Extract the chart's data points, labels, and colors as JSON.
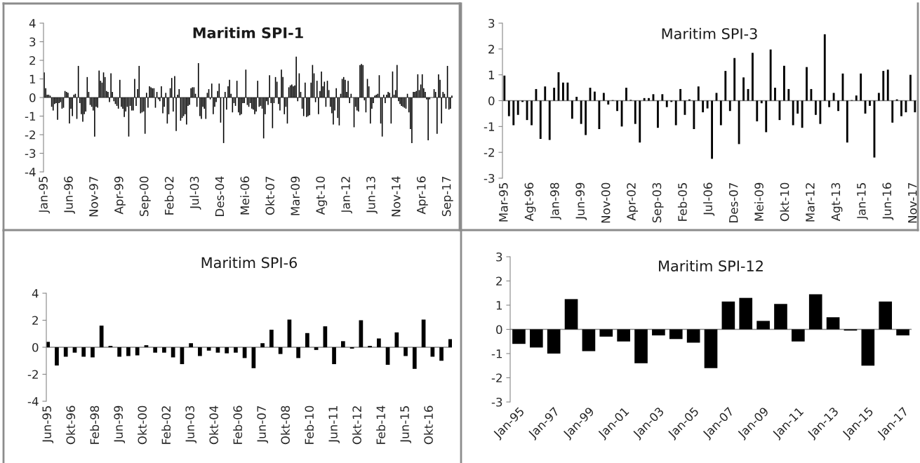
{
  "chart_data": [
    {
      "type": "bar",
      "title": "Maritim SPI-1",
      "color": "#000000",
      "ylim": [
        -4,
        4
      ],
      "yticks": [
        -4,
        -3,
        -2,
        -1,
        0,
        1,
        2,
        3,
        4
      ],
      "categories": [
        "Jan-95",
        null,
        null,
        null,
        null,
        null,
        null,
        null,
        null,
        null,
        null,
        null,
        null,
        null,
        null,
        null,
        null,
        "Jun-96",
        null,
        null,
        null,
        null,
        null,
        null,
        null,
        null,
        null,
        null,
        null,
        null,
        null,
        null,
        null,
        null,
        "Nov-97",
        null,
        null,
        null,
        null,
        null,
        null,
        null,
        null,
        null,
        null,
        null,
        null,
        null,
        null,
        null,
        null,
        "Apr-99",
        null,
        null,
        null,
        null,
        null,
        null,
        null,
        null,
        null,
        null,
        null,
        null,
        null,
        null,
        null,
        null,
        "Sep-00",
        null,
        null,
        null,
        null,
        null,
        null,
        null,
        null,
        null,
        null,
        null,
        null,
        null,
        null,
        null,
        null,
        "Feb-02",
        null,
        null,
        null,
        null,
        null,
        null,
        null,
        null,
        null,
        null,
        null,
        null,
        null,
        null,
        null,
        null,
        "Jul-03",
        null,
        null,
        null,
        null,
        null,
        null,
        null,
        null,
        null,
        null,
        null,
        null,
        null,
        null,
        null,
        null,
        "Des-04",
        null,
        null,
        null,
        null,
        null,
        null,
        null,
        null,
        null,
        null,
        null,
        null,
        null,
        null,
        null,
        null,
        "Mei-06",
        null,
        null,
        null,
        null,
        null,
        null,
        null,
        null,
        null,
        null,
        null,
        null,
        null,
        null,
        null,
        null,
        "Okt-07",
        null,
        null,
        null,
        null,
        null,
        null,
        null,
        null,
        null,
        null,
        null,
        null,
        null,
        null,
        null,
        null,
        "Mar-09",
        null,
        null,
        null,
        null,
        null,
        null,
        null,
        null,
        null,
        null,
        null,
        null,
        null,
        null,
        null,
        null,
        "Agt-10",
        null,
        null,
        null,
        null,
        null,
        null,
        null,
        null,
        null,
        null,
        null,
        null,
        null,
        null,
        null,
        null,
        "Jan-12",
        null,
        null,
        null,
        null,
        null,
        null,
        null,
        null,
        null,
        null,
        null,
        null,
        null,
        null,
        null,
        null,
        "Jun-13",
        null,
        null,
        null,
        null,
        null,
        null,
        null,
        null,
        null,
        null,
        null,
        null,
        null,
        null,
        null,
        null,
        "Nov-14",
        null,
        null,
        null,
        null,
        null,
        null,
        null,
        null,
        null,
        null,
        null,
        null,
        null,
        null,
        null,
        null,
        "Apr-16",
        null,
        null,
        null,
        null,
        null,
        null,
        null,
        null,
        null,
        null,
        null,
        null,
        null,
        null,
        null,
        null,
        "Sep-17",
        null,
        null,
        null
      ],
      "values": [
        1.35,
        0.5,
        0.15,
        0.15,
        0.1,
        -0.5,
        -0.7,
        -0.35,
        -0.3,
        -1.2,
        -0.3,
        -0.25,
        -0.6,
        -0.55,
        0.35,
        0.3,
        0.25,
        -1.4,
        -0.6,
        -1.0,
        0.15,
        0.2,
        -1.15,
        1.7,
        -0.3,
        -0.9,
        -1.3,
        -0.9,
        -0.75,
        1.1,
        0.3,
        -0.4,
        -0.5,
        -0.7,
        -2.1,
        -0.5,
        -0.55,
        1.45,
        0.9,
        0.8,
        1.35,
        1.1,
        0.35,
        0.3,
        -0.25,
        1.3,
        0.3,
        -0.2,
        -0.35,
        -0.45,
        -0.6,
        0.95,
        -0.5,
        -0.6,
        -1.05,
        -0.75,
        -0.5,
        -2.1,
        -0.45,
        -0.7,
        -0.7,
        1.0,
        -0.45,
        0.45,
        1.7,
        -0.85,
        -0.8,
        -0.75,
        -1.95,
        0.25,
        -0.55,
        0.6,
        0.55,
        0.5,
        0.5,
        -0.55,
        0.3,
        -0.1,
        -0.2,
        0.6,
        -0.85,
        -0.5,
        0.25,
        -1.4,
        -0.9,
        0.5,
        1.05,
        -0.75,
        1.15,
        -1.8,
        0.15,
        0.45,
        -1.25,
        -1.1,
        -1.0,
        -0.9,
        -1.45,
        -0.45,
        -0.4,
        0.5,
        0.55,
        0.55,
        0.2,
        -0.5,
        1.85,
        -1.0,
        -1.15,
        -0.5,
        -0.6,
        -1.15,
        0.25,
        0.45,
        -0.1,
        0.75,
        -0.9,
        -0.5,
        -0.25,
        0.35,
        0.75,
        -1.35,
        null,
        -2.45,
        0.3,
        -0.65,
        0.6,
        0.95,
        0.2,
        -0.8,
        -0.3,
        -0.45,
        0.9,
        -0.8,
        -0.95,
        -0.9,
        -0.3,
        -0.3,
        1.5,
        -0.4,
        -0.5,
        -0.3,
        -0.6,
        -0.65,
        -0.9,
        -0.75,
        0.9,
        -0.5,
        -0.45,
        -0.6,
        -2.2,
        -0.9,
        -0.2,
        -0.4,
        1.2,
        -0.3,
        -1.65,
        -0.3,
        1.1,
        0.85,
        -0.35,
        -0.7,
        1.5,
        1.1,
        -0.9,
        -0.5,
        -1.4,
        0.55,
        0.65,
        0.7,
        0.6,
        0.65,
        2.2,
        -0.2,
        1.3,
        0.3,
        -0.6,
        -1.0,
        0.8,
        -1.05,
        -1.0,
        -0.95,
        0.8,
        1.75,
        1.3,
        -0.25,
        0.9,
        -0.9,
        0.35,
        1.4,
        0.6,
        0.85,
        -0.5,
        0.9,
        0.4,
        -0.5,
        -0.85,
        -1.45,
        -0.7,
        0.5,
        -1.1,
        -1.5,
        0.2,
        1.0,
        1.1,
        0.95,
        0.3,
        0.9,
        -0.3,
        0.2,
        null,
        -1.6,
        -0.5,
        -0.7,
        -0.75,
        1.75,
        1.8,
        1.75,
        -0.15,
        -0.8,
        1.0,
        0.6,
        -1.4,
        -0.6,
        -0.3,
        0.1,
        0.15,
        0.2,
        1.2,
        -1.4,
        -2.1,
        0.15,
        -0.3,
        0.15,
        0.3,
        0.25,
        -1.4,
        1.4,
        0.15,
        0.4,
        1.75,
        -0.2,
        -0.35,
        -0.45,
        -0.5,
        -0.55,
        -0.6,
        0.2,
        -0.8,
        -1.7,
        -2.45,
        0.3,
        0.3,
        0.35,
        1.25,
        0.4,
        0.7,
        1.25,
        0.5,
        0.3,
        -0.1,
        -2.3,
        -0.1,
        null,
        0.0,
        0.45,
        0.3,
        -1.95,
        1.25,
        0.95,
        -1.4,
        0.3,
        0.2,
        -0.6,
        1.7,
        -0.65,
        -0.6,
        0.1
      ]
    },
    {
      "type": "bar",
      "title": "Maritim SPI-3",
      "color": "#000000",
      "ylim": [
        -3,
        3
      ],
      "yticks": [
        -3,
        -2,
        -1,
        0,
        1,
        2,
        3
      ],
      "xlim": [
        "1995-01-20",
        "2018-01-01"
      ],
      "xticks": [
        {
          "value": "1995-03",
          "label": "Mar-95"
        },
        {
          "value": "1996-08",
          "label": "Agt-96"
        },
        {
          "value": "1998-01",
          "label": "Jan-98"
        },
        {
          "value": "1999-06",
          "label": "Jun-99"
        },
        {
          "value": "2000-11",
          "label": "Nov-00"
        },
        {
          "value": "2002-04",
          "label": "Apr-02"
        },
        {
          "value": "2003-09",
          "label": "Sep-03"
        },
        {
          "value": "2005-02",
          "label": "Feb-05"
        },
        {
          "value": "2006-07",
          "label": "Jul-06"
        },
        {
          "value": "2007-12",
          "label": "Des-07"
        },
        {
          "value": "2009-05",
          "label": "Mei-09"
        },
        {
          "value": "2010-10",
          "label": "Okt-10"
        },
        {
          "value": "2012-03",
          "label": "Mar-12"
        },
        {
          "value": "2013-08",
          "label": "Agt-13"
        },
        {
          "value": "2015-01",
          "label": "Jan-15"
        },
        {
          "value": "2016-06",
          "label": "Jun-16"
        },
        {
          "value": "2017-11",
          "label": "Nov-17"
        }
      ],
      "x": [
        "1995-03",
        "1995-06",
        "1995-09",
        "1995-12",
        "1996-03",
        "1996-06",
        "1996-09",
        "1996-12",
        "1997-03",
        "1997-06",
        "1997-09",
        "1997-12",
        "1998-03",
        "1998-06",
        "1998-09",
        "1998-12",
        "1999-03",
        "1999-06",
        "1999-09",
        "1999-12",
        "2000-03",
        "2000-06",
        "2000-09",
        "2000-12",
        "2001-03",
        "2001-06",
        "2001-09",
        "2001-12",
        "2002-03",
        "2002-06",
        "2002-09",
        "2002-12",
        "2003-03",
        "2003-06",
        "2003-09",
        "2003-12",
        "2004-03",
        "2004-06",
        "2004-09",
        "2004-12",
        "2005-03",
        "2005-06",
        "2005-09",
        "2005-12",
        "2006-03",
        "2006-06",
        "2006-09",
        "2006-12",
        "2007-03",
        "2007-06",
        "2007-09",
        "2007-12",
        "2008-03",
        "2008-06",
        "2008-09",
        "2008-12",
        "2009-03",
        "2009-06",
        "2009-09",
        "2009-12",
        "2010-03",
        "2010-06",
        "2010-09",
        "2010-12",
        "2011-03",
        "2011-06",
        "2011-09",
        "2011-12",
        "2012-03",
        "2012-06",
        "2012-09",
        "2012-12",
        "2013-03",
        "2013-06",
        "2013-09",
        "2013-12",
        "2014-03",
        "2014-06",
        "2014-09",
        "2014-12",
        "2015-03",
        "2015-06",
        "2015-09",
        "2015-12",
        "2016-03",
        "2016-06",
        "2016-09",
        "2016-12",
        "2017-03",
        "2017-06",
        "2017-09",
        "2017-12"
      ],
      "values": [
        0.97,
        -0.6,
        -0.95,
        -0.55,
        -0.05,
        -0.75,
        -0.95,
        0.45,
        -1.48,
        0.55,
        -1.52,
        0.5,
        1.1,
        0.7,
        0.7,
        -0.7,
        0.15,
        -0.9,
        -1.33,
        0.5,
        0.35,
        -1.1,
        0.3,
        -0.15,
        0.02,
        -0.4,
        -1.0,
        0.5,
        0.03,
        -0.9,
        -1.62,
        0.1,
        0.1,
        0.25,
        -1.05,
        0.25,
        -0.25,
        -0.05,
        -0.95,
        0.45,
        -0.55,
        0.05,
        -1.1,
        0.55,
        -0.45,
        -0.3,
        -2.25,
        0.3,
        -0.95,
        1.15,
        -0.4,
        1.65,
        -1.68,
        0.9,
        0.45,
        1.85,
        -0.8,
        -0.1,
        -1.22,
        1.98,
        0.5,
        -0.75,
        1.35,
        0.45,
        -0.95,
        -0.5,
        -1.05,
        1.3,
        0.45,
        -0.55,
        -0.9,
        2.57,
        -0.25,
        0.3,
        -0.4,
        1.05,
        -1.62,
        0.02,
        0.2,
        1.05,
        -0.5,
        -0.2,
        -2.2,
        0.3,
        1.15,
        1.2,
        -0.85,
        0.05,
        -0.6,
        -0.45,
        1.0,
        -0.45
      ]
    },
    {
      "type": "bar",
      "title": "Maritim SPI-6",
      "color": "#000000",
      "ylim": [
        -4,
        4
      ],
      "yticks": [
        -4,
        -2,
        0,
        2,
        4
      ],
      "xlim": [
        "1995-05-01",
        "2018-01-01"
      ],
      "xticks": [
        {
          "value": "1995-06",
          "label": "Jun-95"
        },
        {
          "value": "1996-10",
          "label": "Okt-96"
        },
        {
          "value": "1998-02",
          "label": "Feb-98"
        },
        {
          "value": "1999-06",
          "label": "Jun-99"
        },
        {
          "value": "2000-10",
          "label": "Okt-00"
        },
        {
          "value": "2002-02",
          "label": "Feb-02"
        },
        {
          "value": "2003-06",
          "label": "Jun-03"
        },
        {
          "value": "2004-10",
          "label": "Okt-04"
        },
        {
          "value": "2006-02",
          "label": "Feb-06"
        },
        {
          "value": "2007-06",
          "label": "Jun-07"
        },
        {
          "value": "2008-10",
          "label": "Okt-08"
        },
        {
          "value": "2010-02",
          "label": "Feb-10"
        },
        {
          "value": "2011-06",
          "label": "Jun-11"
        },
        {
          "value": "2012-10",
          "label": "Okt-12"
        },
        {
          "value": "2014-02",
          "label": "Feb-14"
        },
        {
          "value": "2015-06",
          "label": "Jun-15"
        },
        {
          "value": "2016-10",
          "label": "Okt-16"
        }
      ],
      "x": [
        "1995-06",
        "1995-12",
        "1996-06",
        "1996-12",
        "1997-06",
        "1997-12",
        "1998-06",
        "1998-12",
        "1999-06",
        "1999-12",
        "2000-06",
        "2000-12",
        "2001-06",
        "2001-12",
        "2002-06",
        "2002-12",
        "2003-06",
        "2003-12",
        "2004-06",
        "2004-12",
        "2005-06",
        "2005-12",
        "2006-06",
        "2006-12",
        "2007-06",
        "2007-12",
        "2008-06",
        "2008-12",
        "2009-06",
        "2009-12",
        "2010-06",
        "2010-12",
        "2011-06",
        "2011-12",
        "2012-06",
        "2012-12",
        "2013-06",
        "2013-12",
        "2014-06",
        "2014-12",
        "2015-06",
        "2015-12",
        "2016-06",
        "2016-12",
        "2017-06",
        "2017-12"
      ],
      "values": [
        0.4,
        -1.35,
        -0.7,
        -0.4,
        -0.7,
        -0.75,
        1.6,
        0.1,
        -0.7,
        -0.65,
        -0.6,
        0.15,
        -0.4,
        -0.4,
        -0.75,
        -1.25,
        0.3,
        -0.65,
        -0.25,
        -0.4,
        -0.45,
        -0.4,
        -0.8,
        -1.55,
        0.3,
        1.3,
        -0.5,
        2.05,
        -0.8,
        1.05,
        -0.2,
        1.55,
        -1.25,
        0.45,
        -0.1,
        2.0,
        0.1,
        0.65,
        -1.3,
        1.1,
        -0.65,
        -1.6,
        2.05,
        -0.7,
        -1.0,
        0.6
      ]
    },
    {
      "type": "bar",
      "title": "Maritim SPI-12",
      "color": "#000000",
      "ylim": [
        -3,
        3
      ],
      "yticks": [
        -3,
        -2,
        -1,
        0,
        1,
        2,
        3
      ],
      "categories": [
        "Jan-95",
        null,
        "Jan-97",
        null,
        "Jan-99",
        null,
        "Jan-01",
        null,
        "Jan-03",
        null,
        "Jan-05",
        null,
        "Jan-07",
        null,
        "Jan-09",
        null,
        "Jan-11",
        null,
        "Jan-13",
        null,
        "Jan-15",
        null,
        "Jan-17"
      ],
      "values": [
        -0.6,
        -0.75,
        -1.0,
        1.25,
        -0.9,
        -0.3,
        -0.5,
        -1.4,
        -0.25,
        -0.4,
        -0.55,
        -1.6,
        1.15,
        1.3,
        0.35,
        1.05,
        -0.5,
        1.45,
        0.5,
        -0.05,
        -1.5,
        1.15,
        -0.25
      ]
    }
  ]
}
